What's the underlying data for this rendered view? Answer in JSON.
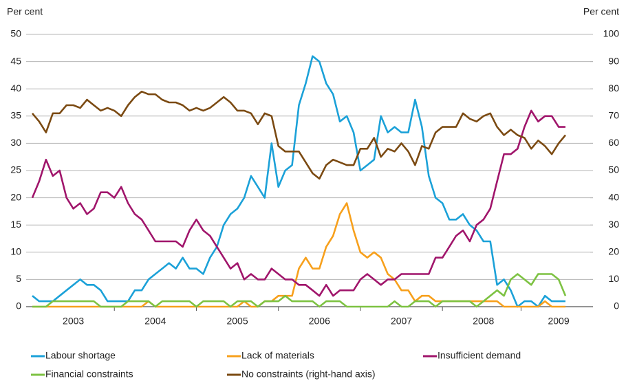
{
  "chart_data": {
    "type": "line",
    "ylabel": "Per cent",
    "y2label": "Per cent",
    "categories": [
      null,
      null,
      null,
      null,
      null,
      null,
      "2003",
      null,
      null,
      null,
      null,
      null,
      null,
      null,
      null,
      null,
      null,
      null,
      "2004",
      null,
      null,
      null,
      null,
      null,
      null,
      null,
      null,
      null,
      null,
      null,
      "2005",
      null,
      null,
      null,
      null,
      null,
      null,
      null,
      null,
      null,
      null,
      null,
      "2006",
      null,
      null,
      null,
      null,
      null,
      null,
      null,
      null,
      null,
      null,
      null,
      "2007",
      null,
      null,
      null,
      null,
      null,
      null,
      null,
      null,
      null,
      null,
      null,
      "2008",
      null,
      null,
      null,
      null,
      null,
      null,
      null,
      null,
      null,
      null,
      "2009",
      null
    ],
    "ylim": [
      0,
      50
    ],
    "yticks": [
      0,
      5,
      10,
      15,
      20,
      25,
      30,
      35,
      40,
      45,
      50
    ],
    "y2lim": [
      0,
      100
    ],
    "y2ticks": [
      0,
      10,
      20,
      30,
      40,
      50,
      60,
      70,
      80,
      90,
      100
    ],
    "grid": true,
    "legend": "bottom",
    "series": [
      {
        "name": "Labour shortage",
        "color": "#1ba1d8",
        "values": [
          2,
          1,
          1,
          1,
          2,
          3,
          4,
          5,
          4,
          4,
          3,
          1,
          1,
          1,
          1,
          3,
          3,
          5,
          6,
          7,
          8,
          7,
          9,
          7,
          7,
          6,
          9,
          11,
          15,
          17,
          18,
          20,
          24,
          22,
          20,
          30,
          22,
          25,
          26,
          37,
          41,
          46,
          45,
          41,
          39,
          34,
          35,
          32,
          25,
          26,
          27,
          35,
          32,
          33,
          32,
          32,
          38,
          33,
          24,
          20,
          19,
          16,
          16,
          17,
          15,
          14,
          12,
          12,
          4,
          5,
          3,
          0,
          1,
          1,
          0,
          2,
          1,
          1,
          1
        ]
      },
      {
        "name": "Lack of materials",
        "color": "#f7a01c",
        "values": [
          0,
          0,
          0,
          0,
          0,
          0,
          0,
          0,
          0,
          0,
          0,
          0,
          0,
          0,
          0,
          0,
          0,
          1,
          0,
          0,
          0,
          0,
          0,
          0,
          0,
          0,
          0,
          0,
          0,
          0,
          0,
          1,
          0,
          0,
          1,
          1,
          2,
          2,
          2,
          7,
          9,
          7,
          7,
          11,
          13,
          17,
          19,
          14,
          10,
          9,
          10,
          9,
          6,
          5,
          3,
          3,
          1,
          2,
          2,
          1,
          1,
          1,
          1,
          1,
          1,
          1,
          1,
          1,
          1,
          0,
          0,
          0,
          0,
          0,
          0,
          1,
          0,
          0,
          0
        ]
      },
      {
        "name": "Insufficient demand",
        "color": "#a0156b",
        "values": [
          20,
          23,
          27,
          24,
          25,
          20,
          18,
          19,
          17,
          18,
          21,
          21,
          20,
          22,
          19,
          17,
          16,
          14,
          12,
          12,
          12,
          12,
          11,
          14,
          16,
          14,
          13,
          11,
          9,
          7,
          8,
          5,
          6,
          5,
          5,
          7,
          6,
          5,
          5,
          4,
          4,
          3,
          2,
          4,
          2,
          3,
          3,
          3,
          5,
          6,
          5,
          4,
          5,
          5,
          6,
          6,
          6,
          6,
          6,
          9,
          9,
          11,
          13,
          14,
          12,
          15,
          16,
          18,
          23,
          28,
          28,
          29,
          33,
          36,
          34,
          35,
          35,
          33,
          33
        ]
      },
      {
        "name": "Financial constraints",
        "color": "#7dc242",
        "values": [
          0,
          0,
          0,
          1,
          1,
          1,
          1,
          1,
          1,
          1,
          0,
          0,
          0,
          0,
          1,
          1,
          1,
          1,
          0,
          1,
          1,
          1,
          1,
          1,
          0,
          1,
          1,
          1,
          1,
          0,
          1,
          1,
          1,
          0,
          1,
          1,
          1,
          2,
          1,
          1,
          1,
          1,
          0,
          1,
          1,
          1,
          0,
          0,
          0,
          0,
          0,
          0,
          0,
          1,
          0,
          0,
          1,
          1,
          1,
          0,
          1,
          1,
          1,
          1,
          1,
          0,
          1,
          2,
          3,
          2,
          5,
          6,
          5,
          4,
          6,
          6,
          6,
          5,
          2
        ]
      },
      {
        "name": "No constraints (right-hand axis)",
        "color": "#7b4a12",
        "axis": "y2",
        "values": [
          71,
          68,
          64,
          71,
          71,
          74,
          74,
          73,
          76,
          74,
          72,
          73,
          72,
          70,
          74,
          77,
          79,
          78,
          78,
          76,
          75,
          75,
          74,
          72,
          73,
          72,
          73,
          75,
          77,
          75,
          72,
          72,
          71,
          67,
          71,
          70,
          59,
          57,
          57,
          57,
          53,
          49,
          47,
          52,
          54,
          53,
          52,
          52,
          58,
          58,
          62,
          55,
          58,
          57,
          60,
          57,
          52,
          59,
          58,
          64,
          66,
          66,
          66,
          71,
          69,
          68,
          70,
          71,
          66,
          63,
          65,
          63,
          62,
          58,
          61,
          59,
          56,
          60,
          63
        ]
      }
    ]
  }
}
